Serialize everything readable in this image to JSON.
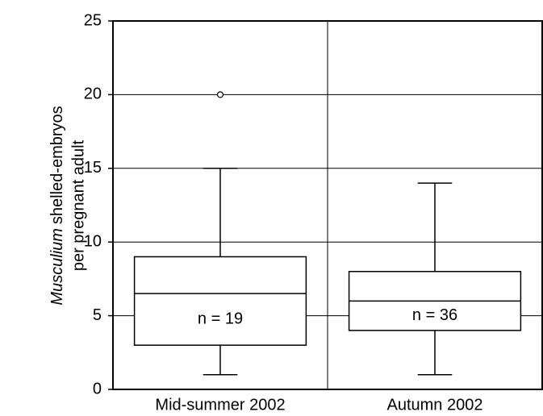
{
  "chart_data": {
    "type": "box",
    "ylabel_italic": "Musculium",
    "ylabel_rest": "shelled-embryos",
    "ylabel_line2": "per pregnant adult",
    "categories": [
      "Mid-summer 2002",
      "Autumn 2002"
    ],
    "boxes": [
      {
        "min": 1,
        "q1": 3,
        "median": 6.5,
        "q3": 9,
        "max": 15,
        "outliers": [
          20
        ]
      },
      {
        "min": 1,
        "q1": 4,
        "median": 6,
        "q3": 8,
        "max": 14,
        "outliers": []
      }
    ],
    "annotations": [
      "n = 19",
      "n = 36"
    ],
    "ylim": [
      0,
      25
    ],
    "yticks": [
      0,
      5,
      10,
      15,
      20,
      25
    ],
    "grid": true,
    "color": "#000000"
  }
}
